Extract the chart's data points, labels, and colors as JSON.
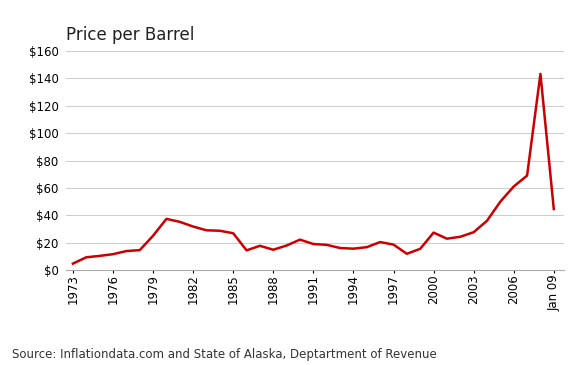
{
  "title": "Price per Barrel",
  "source_text": "Source: Inflationdata.com and State of Alaska, Deptartment of Revenue",
  "line_color": "#cc0000",
  "background_color": "#ffffff",
  "plot_bg_color": "#ffffff",
  "grid_color": "#cccccc",
  "ylim": [
    0,
    160
  ],
  "yticks": [
    0,
    20,
    40,
    60,
    80,
    100,
    120,
    140,
    160
  ],
  "xtick_labels": [
    "1973",
    "1976",
    "1979",
    "1982",
    "1985",
    "1988",
    "1991",
    "1994",
    "1997",
    "2000",
    "2003",
    "2006",
    "Jan 09"
  ],
  "years": [
    1973,
    1974,
    1975,
    1976,
    1977,
    1978,
    1979,
    1980,
    1981,
    1982,
    1983,
    1984,
    1985,
    1986,
    1987,
    1988,
    1989,
    1990,
    1991,
    1992,
    1993,
    1994,
    1995,
    1996,
    1997,
    1998,
    1999,
    2000,
    2001,
    2002,
    2003,
    2004,
    2005,
    2006,
    2007,
    2008,
    2009
  ],
  "values": [
    4.75,
    9.35,
    10.38,
    11.63,
    13.92,
    14.57,
    25.1,
    37.42,
    35.24,
    31.83,
    29.08,
    28.75,
    26.92,
    14.43,
    17.75,
    14.87,
    17.97,
    22.26,
    19.06,
    18.44,
    16.14,
    15.66,
    16.75,
    20.46,
    18.64,
    11.91,
    15.56,
    27.39,
    22.95,
    24.36,
    27.69,
    36.05,
    50.04,
    61.08,
    69.04,
    143.35,
    44.6
  ],
  "title_fontsize": 12,
  "source_fontsize": 8.5,
  "tick_fontsize": 8.5,
  "line_width": 1.8
}
